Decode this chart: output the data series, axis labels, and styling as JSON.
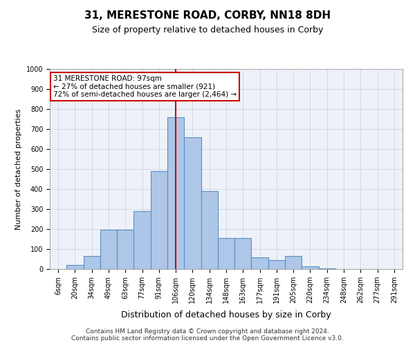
{
  "title": "31, MERESTONE ROAD, CORBY, NN18 8DH",
  "subtitle": "Size of property relative to detached houses in Corby",
  "xlabel": "Distribution of detached houses by size in Corby",
  "ylabel": "Number of detached properties",
  "categories": [
    "6sqm",
    "20sqm",
    "34sqm",
    "49sqm",
    "63sqm",
    "77sqm",
    "91sqm",
    "106sqm",
    "120sqm",
    "134sqm",
    "148sqm",
    "163sqm",
    "177sqm",
    "191sqm",
    "205sqm",
    "220sqm",
    "234sqm",
    "248sqm",
    "262sqm",
    "277sqm",
    "291sqm"
  ],
  "values": [
    0,
    20,
    65,
    195,
    195,
    290,
    490,
    760,
    660,
    390,
    155,
    155,
    60,
    45,
    65,
    15,
    5,
    0,
    0,
    0,
    0
  ],
  "bar_color": "#aec6e8",
  "bar_edge_color": "#5a8fc0",
  "grid_color": "#d0d8e8",
  "bg_color": "#eef2f8",
  "vline_color": "#cc0000",
  "annotation_text": "31 MERESTONE ROAD: 97sqm\n← 27% of detached houses are smaller (921)\n72% of semi-detached houses are larger (2,464) →",
  "annotation_box_color": "#ffffff",
  "annotation_box_edge": "#cc0000",
  "ylim": [
    0,
    1000
  ],
  "yticks": [
    0,
    100,
    200,
    300,
    400,
    500,
    600,
    700,
    800,
    900,
    1000
  ],
  "footer_line1": "Contains HM Land Registry data © Crown copyright and database right 2024.",
  "footer_line2": "Contains public sector information licensed under the Open Government Licence v3.0.",
  "title_fontsize": 11,
  "subtitle_fontsize": 9,
  "ylabel_fontsize": 8,
  "xlabel_fontsize": 9,
  "tick_fontsize": 7,
  "footer_fontsize": 6.5,
  "annotation_fontsize": 7.5
}
